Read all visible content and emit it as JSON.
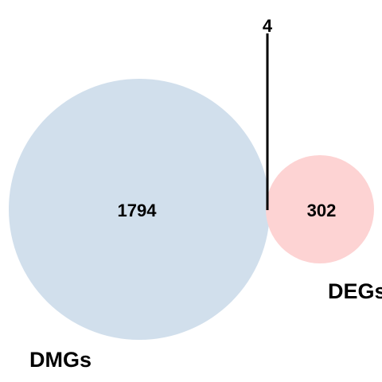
{
  "venn": {
    "sets": [
      {
        "label": "DMGs",
        "color": "#d1dfec"
      },
      {
        "label": "DEGs",
        "color": "#fdd3d3"
      }
    ],
    "regions": {
      "dmgs_only": "1794",
      "intersection": "4",
      "degs_only": "302"
    }
  }
}
